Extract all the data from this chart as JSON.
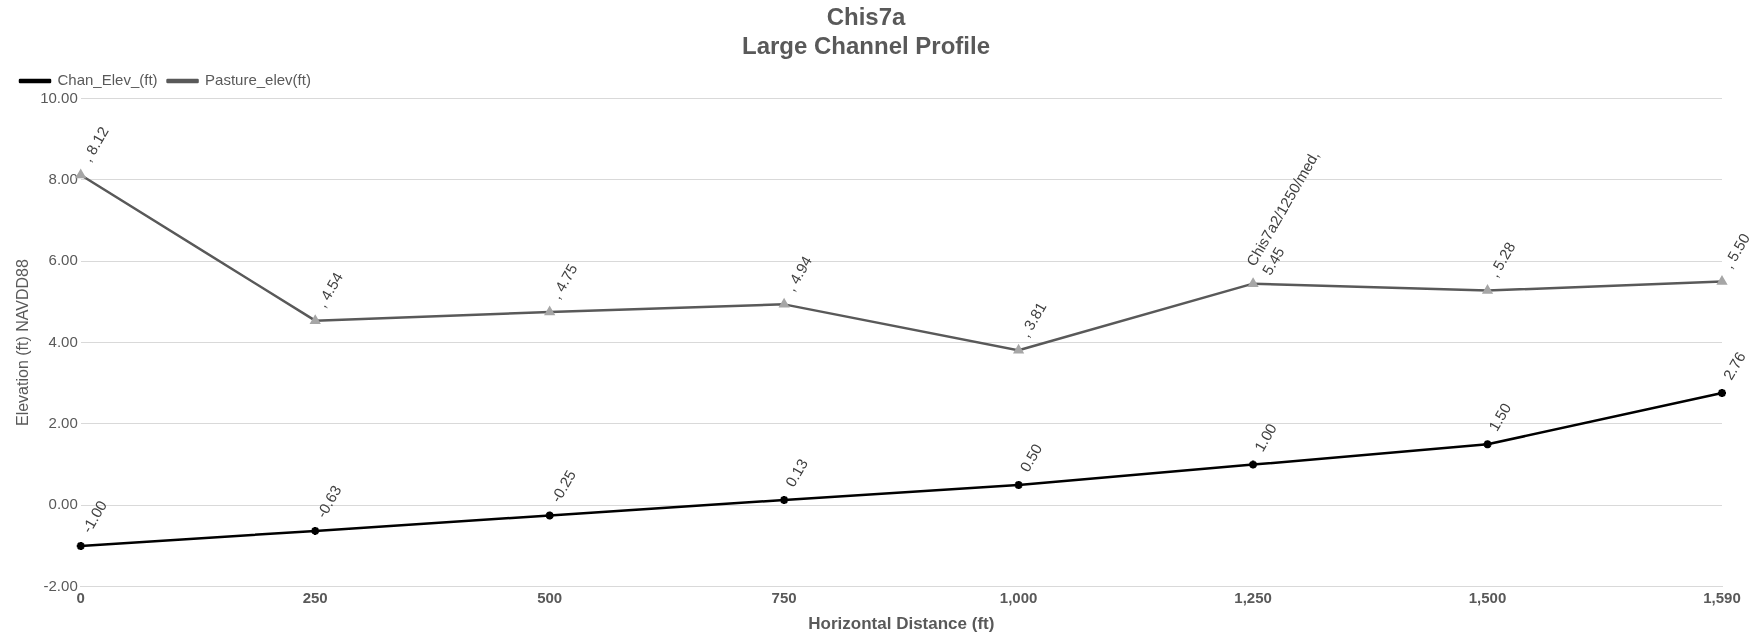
{
  "chart_data": {
    "type": "line",
    "title": "Chis7a\nLarge Channel Profile",
    "xlabel": "Horizontal Distance (ft)",
    "ylabel": "Elevation (ft) NAVDD88",
    "categories": [
      "0",
      "250",
      "500",
      "750",
      "1,000",
      "1,250",
      "1,500",
      "1,590"
    ],
    "series": [
      {
        "name": "Chan_Elev_(ft)",
        "color": "#000000",
        "marker": "cross",
        "values": [
          -1.0,
          -0.63,
          -0.25,
          0.13,
          0.5,
          1.0,
          1.5,
          2.76
        ],
        "value_labels": [
          "-1.00",
          "-0.63",
          "-0.25",
          "0.13",
          "0.50",
          "1.00",
          "1.50",
          "2.76"
        ]
      },
      {
        "name": "Pasture_elev(ft)",
        "color": "#595959",
        "marker": "triangle",
        "values": [
          8.12,
          4.54,
          4.75,
          4.94,
          3.81,
          5.45,
          5.28,
          5.5
        ],
        "value_labels": [
          ", 8.12",
          ", 4.54",
          ", 4.75",
          ", 4.94",
          ", 3.81",
          "Chis7a2/1250/med,\n5.45",
          ", 5.28",
          ", 5.50"
        ]
      }
    ],
    "ylim": [
      -2,
      10
    ],
    "yticks": [
      {
        "value": -2,
        "label": "-2.00"
      },
      {
        "value": 0,
        "label": "0.00"
      },
      {
        "value": 2,
        "label": "2.00"
      },
      {
        "value": 4,
        "label": "4.00"
      },
      {
        "value": 6,
        "label": "6.00"
      },
      {
        "value": 8,
        "label": "8.00"
      },
      {
        "value": 10,
        "label": "10.00"
      }
    ],
    "grid": "y",
    "legend": "top left",
    "line_style": "solid"
  }
}
